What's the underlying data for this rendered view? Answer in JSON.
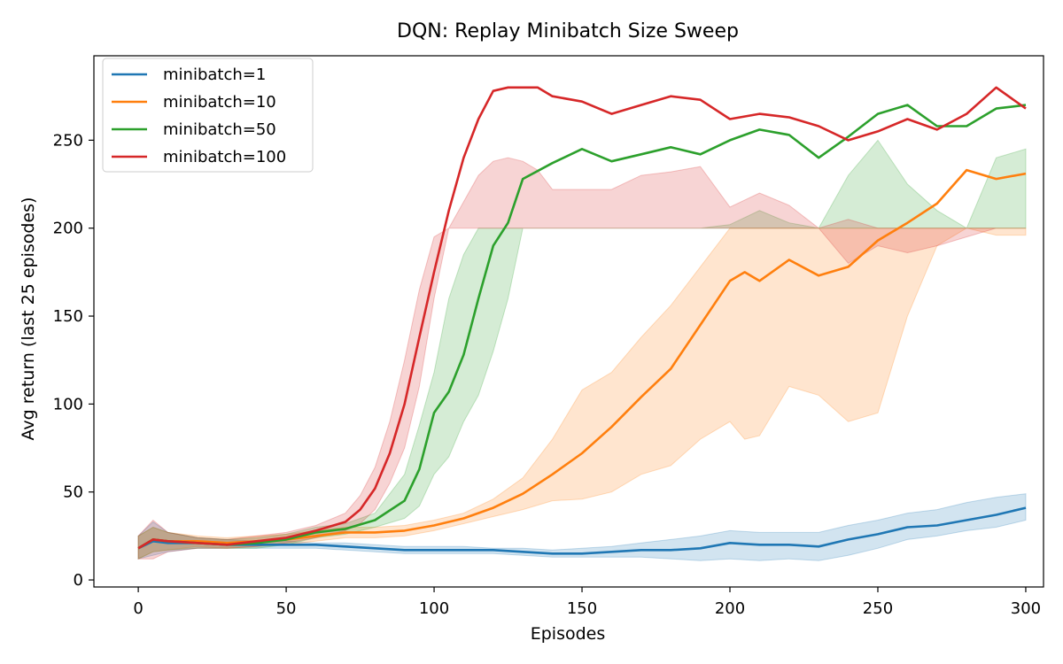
{
  "chart_data": {
    "type": "line",
    "title": "DQN: Replay Minibatch Size Sweep",
    "xlabel": "Episodes",
    "ylabel": "Avg return (last 25 episodes)",
    "xlim": [
      -15,
      306
    ],
    "ylim": [
      -4,
      298
    ],
    "xticks": [
      0,
      50,
      100,
      150,
      200,
      250,
      300
    ],
    "yticks": [
      0,
      50,
      100,
      150,
      200,
      250
    ],
    "grid": false,
    "legend_position": "upper-left",
    "series": [
      {
        "name": "minibatch=1",
        "color": "#1f77b4",
        "x": [
          0,
          5,
          10,
          20,
          30,
          40,
          50,
          60,
          70,
          80,
          90,
          100,
          110,
          120,
          130,
          140,
          150,
          160,
          170,
          180,
          190,
          200,
          210,
          220,
          230,
          240,
          250,
          260,
          270,
          280,
          290,
          300
        ],
        "y": [
          18,
          22,
          21,
          21,
          20,
          20,
          20,
          20,
          19,
          18,
          17,
          17,
          17,
          17,
          16,
          15,
          15,
          16,
          17,
          17,
          18,
          21,
          20,
          20,
          19,
          23,
          26,
          30,
          31,
          34,
          37,
          41
        ],
        "upper": [
          25,
          33,
          27,
          24,
          23,
          22,
          22,
          21,
          21,
          20,
          19,
          19,
          19,
          18,
          18,
          17,
          18,
          19,
          21,
          23,
          25,
          28,
          27,
          27,
          27,
          31,
          34,
          38,
          40,
          44,
          47,
          49
        ],
        "lower": [
          12,
          14,
          16,
          18,
          18,
          18,
          18,
          18,
          17,
          16,
          15,
          15,
          15,
          15,
          14,
          13,
          13,
          13,
          13,
          12,
          11,
          12,
          11,
          12,
          11,
          14,
          18,
          23,
          25,
          28,
          30,
          34
        ]
      },
      {
        "name": "minibatch=10",
        "color": "#ff7f0e",
        "x": [
          0,
          5,
          10,
          20,
          30,
          40,
          50,
          60,
          70,
          80,
          90,
          100,
          110,
          120,
          130,
          140,
          150,
          160,
          170,
          180,
          190,
          200,
          205,
          210,
          220,
          230,
          240,
          250,
          260,
          270,
          280,
          290,
          300
        ],
        "y": [
          18,
          23,
          22,
          22,
          21,
          22,
          23,
          25,
          27,
          27,
          28,
          31,
          35,
          41,
          49,
          60,
          72,
          87,
          104,
          120,
          145,
          170,
          175,
          170,
          182,
          173,
          178,
          193,
          203,
          214,
          233,
          228,
          231
        ],
        "upper": [
          25,
          30,
          27,
          25,
          24,
          25,
          26,
          28,
          30,
          30,
          31,
          34,
          38,
          46,
          58,
          80,
          108,
          118,
          138,
          156,
          178,
          200,
          200,
          200,
          200,
          200,
          200,
          200,
          200,
          200,
          200,
          200,
          200
        ],
        "lower": [
          12,
          16,
          17,
          19,
          18,
          19,
          20,
          22,
          24,
          24,
          25,
          28,
          32,
          36,
          40,
          45,
          46,
          50,
          60,
          65,
          80,
          90,
          80,
          82,
          110,
          105,
          90,
          95,
          150,
          190,
          200,
          196,
          196
        ]
      },
      {
        "name": "minibatch=50",
        "color": "#2ca02c",
        "x": [
          0,
          5,
          10,
          20,
          30,
          40,
          50,
          60,
          70,
          80,
          90,
          95,
          100,
          105,
          110,
          115,
          120,
          125,
          130,
          140,
          150,
          160,
          170,
          180,
          190,
          200,
          210,
          220,
          230,
          240,
          250,
          260,
          270,
          280,
          290,
          300
        ],
        "y": [
          18,
          23,
          22,
          21,
          20,
          21,
          23,
          27,
          29,
          34,
          45,
          63,
          95,
          107,
          128,
          160,
          190,
          203,
          228,
          237,
          245,
          238,
          242,
          246,
          242,
          250,
          256,
          253,
          240,
          252,
          265,
          270,
          258,
          258,
          268,
          270
        ],
        "upper": [
          25,
          30,
          27,
          24,
          23,
          24,
          26,
          30,
          32,
          38,
          60,
          88,
          118,
          160,
          185,
          200,
          200,
          200,
          200,
          200,
          200,
          200,
          200,
          200,
          200,
          202,
          210,
          203,
          200,
          230,
          250,
          225,
          210,
          200,
          240,
          245
        ],
        "lower": [
          12,
          16,
          17,
          18,
          18,
          18,
          20,
          24,
          26,
          30,
          35,
          42,
          60,
          70,
          90,
          105,
          130,
          160,
          200,
          200,
          200,
          200,
          200,
          200,
          200,
          200,
          200,
          200,
          200,
          200,
          200,
          200,
          200,
          200,
          200,
          200
        ]
      },
      {
        "name": "minibatch=100",
        "color": "#d62728",
        "x": [
          0,
          5,
          10,
          20,
          30,
          40,
          50,
          60,
          70,
          75,
          80,
          85,
          90,
          95,
          100,
          105,
          110,
          115,
          120,
          125,
          130,
          135,
          140,
          150,
          160,
          170,
          180,
          190,
          200,
          210,
          220,
          230,
          240,
          250,
          260,
          270,
          280,
          290,
          300
        ],
        "y": [
          18,
          23,
          22,
          21,
          20,
          22,
          24,
          28,
          33,
          40,
          52,
          72,
          100,
          138,
          175,
          210,
          240,
          262,
          278,
          280,
          280,
          280,
          275,
          272,
          265,
          270,
          275,
          273,
          262,
          265,
          263,
          258,
          250,
          255,
          262,
          256,
          265,
          280,
          268
        ],
        "upper": [
          25,
          34,
          27,
          24,
          23,
          25,
          27,
          31,
          38,
          48,
          64,
          90,
          125,
          165,
          195,
          200,
          215,
          230,
          238,
          240,
          238,
          233,
          222,
          222,
          222,
          230,
          232,
          235,
          212,
          220,
          213,
          200,
          205,
          200,
          200,
          200,
          200,
          200,
          200
        ],
        "lower": [
          12,
          12,
          16,
          18,
          18,
          19,
          21,
          24,
          28,
          32,
          40,
          55,
          75,
          110,
          160,
          200,
          200,
          200,
          200,
          200,
          200,
          200,
          200,
          200,
          200,
          200,
          200,
          200,
          200,
          200,
          200,
          200,
          180,
          190,
          186,
          190,
          195,
          200,
          200
        ]
      }
    ]
  }
}
